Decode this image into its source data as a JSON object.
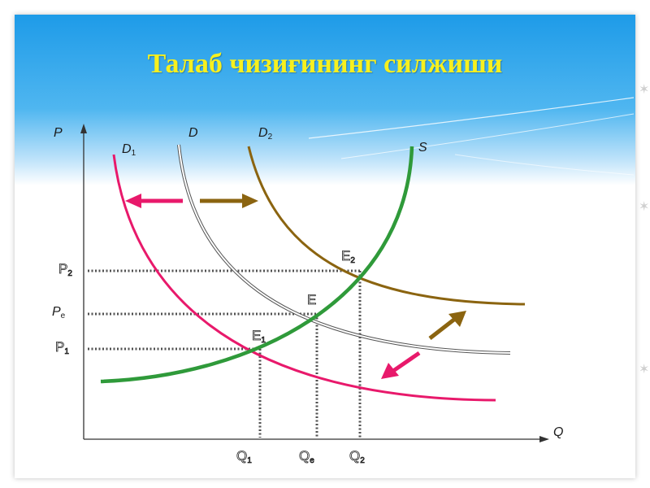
{
  "title": "Талаб чизиғининг силжиши",
  "axes": {
    "y_label": "P",
    "x_label": "Q"
  },
  "curves": [
    {
      "label": "D",
      "sub": "1",
      "color": "#e8196b"
    },
    {
      "label": "D",
      "sub": "",
      "color": "#888888"
    },
    {
      "label": "D",
      "sub": "2",
      "color": "#8b6410"
    },
    {
      "label": "S",
      "sub": "",
      "color": "#2f9a3a"
    }
  ],
  "price_levels": [
    {
      "label": "P",
      "sub": "2"
    },
    {
      "label": "P",
      "sub": "e"
    },
    {
      "label": "P",
      "sub": "1"
    }
  ],
  "quantity_levels": [
    {
      "label": "Q",
      "sub": "1"
    },
    {
      "label": "Q",
      "sub": "e"
    },
    {
      "label": "Q",
      "sub": "2"
    }
  ],
  "equilibria": [
    {
      "label": "E",
      "sub": "2"
    },
    {
      "label": "E",
      "sub": ""
    },
    {
      "label": "E",
      "sub": "1"
    }
  ],
  "arrows": {
    "left_color": "#e8196b",
    "right_color": "#8b6410"
  }
}
